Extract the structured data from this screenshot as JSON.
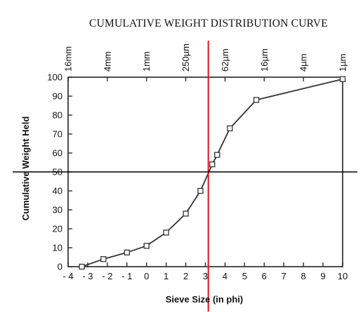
{
  "chart_data": {
    "type": "line",
    "title": "CUMULATIVE WEIGHT DISTRIBUTION CURVE",
    "xlabel": "Sieve Size (in phi)",
    "ylabel": "Cumulative Weight Held",
    "xlim": [
      -4,
      10
    ],
    "ylim": [
      0,
      100
    ],
    "x_ticks": [
      -4,
      -3,
      -2,
      -1,
      0,
      1,
      2,
      3,
      4,
      5,
      6,
      7,
      8,
      9,
      10
    ],
    "x_tick_labels": [
      "- 4",
      "- 3",
      "- 2",
      "- 1",
      "0",
      "1",
      "2",
      "3",
      "4",
      "5",
      "6",
      "7",
      "8",
      "9",
      "10"
    ],
    "y_ticks": [
      0,
      10,
      20,
      30,
      40,
      50,
      60,
      70,
      80,
      90,
      100
    ],
    "y_tick_labels": [
      "0",
      "10",
      "20",
      "30",
      "40",
      "50",
      "60",
      "70",
      "80",
      "90",
      "100"
    ],
    "top_axis_ticks": [
      {
        "x": -4,
        "label": "16mm"
      },
      {
        "x": -2,
        "label": "4mm"
      },
      {
        "x": 0,
        "label": "1mm"
      },
      {
        "x": 2,
        "label": "250µm"
      },
      {
        "x": 4,
        "label": "62µm"
      },
      {
        "x": 6,
        "label": "16µm"
      },
      {
        "x": 8,
        "label": "4µm"
      },
      {
        "x": 10,
        "label": "1µm"
      }
    ],
    "series": [
      {
        "x": [
          -3.3,
          -2.2,
          -1.0,
          0.0,
          1.0,
          2.0,
          2.75,
          3.35,
          3.6,
          4.25,
          5.6,
          10.0
        ],
        "y": [
          0,
          4,
          7.5,
          11,
          18,
          28,
          40,
          54,
          59,
          73,
          88,
          99
        ]
      }
    ],
    "reference_lines": [
      {
        "orientation": "vertical",
        "x": 3.15,
        "color": "#e3121a"
      },
      {
        "orientation": "horizontal",
        "y": 50,
        "color": "#000000"
      }
    ],
    "grid": false,
    "line_color": "#333333"
  }
}
